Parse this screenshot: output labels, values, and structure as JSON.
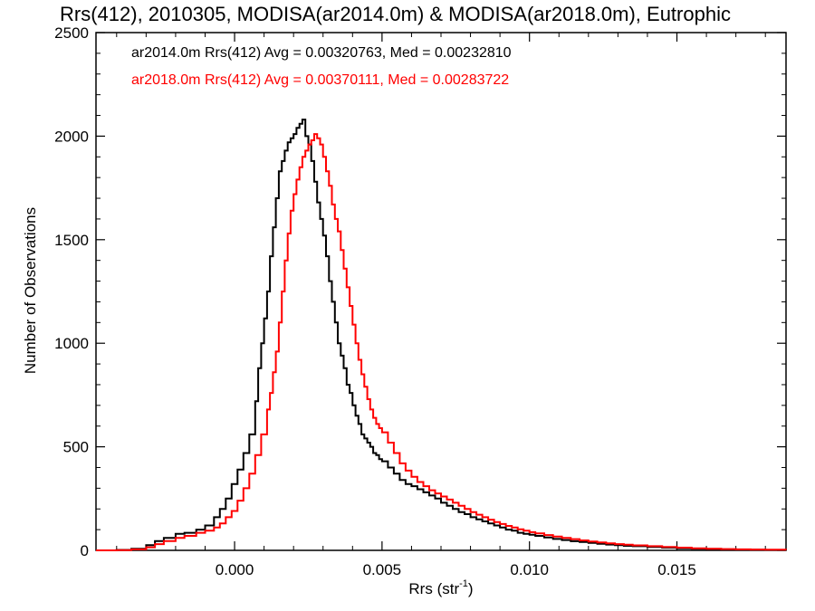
{
  "chart_data": {
    "type": "line",
    "title": "Rrs(412), 2010305, MODISA(ar2014.0m) & MODISA(ar2018.0m), Eutrophic",
    "xlabel": "Rrs (str",
    "xlabel_sup": "-1",
    "xlabel_end": ")",
    "ylabel": "Number of Observations",
    "xlim": [
      -0.0047,
      0.0187
    ],
    "ylim": [
      0,
      2500
    ],
    "x_ticks": [
      0.0,
      0.005,
      0.01,
      0.015
    ],
    "x_tick_labels": [
      "0.000",
      "0.005",
      "0.010",
      "0.015"
    ],
    "y_ticks": [
      0,
      500,
      1000,
      1500,
      2000,
      2500
    ],
    "y_tick_labels": [
      "0",
      "500",
      "1000",
      "1500",
      "2000",
      "2500"
    ],
    "legend_placement": "top-left",
    "grid": false,
    "series": [
      {
        "name": "ar2014.0m",
        "color": "#000000",
        "legend": "ar2014.0m Rrs(412) Avg = 0.00320763, Med = 0.00232810",
        "points": [
          [
            -0.0047,
            0
          ],
          [
            -0.004,
            2
          ],
          [
            -0.0035,
            8
          ],
          [
            -0.003,
            25
          ],
          [
            -0.0027,
            45
          ],
          [
            -0.0024,
            60
          ],
          [
            -0.002,
            80
          ],
          [
            -0.0017,
            85
          ],
          [
            -0.0013,
            100
          ],
          [
            -0.001,
            120
          ],
          [
            -0.0007,
            160
          ],
          [
            -0.0005,
            200
          ],
          [
            -0.0003,
            250
          ],
          [
            -0.0001,
            320
          ],
          [
            0.0001,
            390
          ],
          [
            0.0003,
            470
          ],
          [
            0.0005,
            560
          ],
          [
            0.0007,
            720
          ],
          [
            0.0008,
            880
          ],
          [
            0.0009,
            1000
          ],
          [
            0.001,
            1120
          ],
          [
            0.0011,
            1250
          ],
          [
            0.0012,
            1420
          ],
          [
            0.0013,
            1560
          ],
          [
            0.0014,
            1700
          ],
          [
            0.0015,
            1830
          ],
          [
            0.0016,
            1880
          ],
          [
            0.0017,
            1930
          ],
          [
            0.0018,
            1970
          ],
          [
            0.0019,
            1990
          ],
          [
            0.002,
            2010
          ],
          [
            0.0021,
            2040
          ],
          [
            0.0022,
            2060
          ],
          [
            0.0023,
            2080
          ],
          [
            0.0024,
            2000
          ],
          [
            0.0025,
            1960
          ],
          [
            0.0026,
            1880
          ],
          [
            0.0027,
            1780
          ],
          [
            0.0028,
            1680
          ],
          [
            0.0029,
            1600
          ],
          [
            0.003,
            1520
          ],
          [
            0.0031,
            1420
          ],
          [
            0.0032,
            1300
          ],
          [
            0.0033,
            1200
          ],
          [
            0.0034,
            1100
          ],
          [
            0.0035,
            1000
          ],
          [
            0.0036,
            940
          ],
          [
            0.0037,
            880
          ],
          [
            0.0038,
            800
          ],
          [
            0.0039,
            760
          ],
          [
            0.004,
            700
          ],
          [
            0.0041,
            650
          ],
          [
            0.0042,
            610
          ],
          [
            0.0043,
            560
          ],
          [
            0.0044,
            540
          ],
          [
            0.0045,
            520
          ],
          [
            0.0046,
            500
          ],
          [
            0.0047,
            470
          ],
          [
            0.0048,
            460
          ],
          [
            0.0049,
            440
          ],
          [
            0.005,
            430
          ],
          [
            0.0052,
            400
          ],
          [
            0.0054,
            370
          ],
          [
            0.0056,
            340
          ],
          [
            0.0058,
            320
          ],
          [
            0.006,
            310
          ],
          [
            0.0062,
            295
          ],
          [
            0.0064,
            280
          ],
          [
            0.0066,
            265
          ],
          [
            0.0068,
            250
          ],
          [
            0.007,
            230
          ],
          [
            0.0072,
            215
          ],
          [
            0.0074,
            200
          ],
          [
            0.0076,
            185
          ],
          [
            0.0078,
            175
          ],
          [
            0.008,
            160
          ],
          [
            0.0082,
            150
          ],
          [
            0.0084,
            140
          ],
          [
            0.0086,
            130
          ],
          [
            0.0088,
            120
          ],
          [
            0.009,
            110
          ],
          [
            0.0092,
            100
          ],
          [
            0.0094,
            95
          ],
          [
            0.0096,
            85
          ],
          [
            0.0098,
            80
          ],
          [
            0.01,
            75
          ],
          [
            0.0102,
            70
          ],
          [
            0.0105,
            62
          ],
          [
            0.0108,
            55
          ],
          [
            0.0111,
            50
          ],
          [
            0.0114,
            44
          ],
          [
            0.0117,
            40
          ],
          [
            0.012,
            36
          ],
          [
            0.0123,
            32
          ],
          [
            0.0126,
            28
          ],
          [
            0.0129,
            25
          ],
          [
            0.0132,
            22
          ],
          [
            0.0135,
            20
          ],
          [
            0.014,
            16
          ],
          [
            0.0145,
            13
          ],
          [
            0.015,
            10
          ],
          [
            0.0155,
            8
          ],
          [
            0.016,
            7
          ],
          [
            0.0165,
            5
          ],
          [
            0.017,
            4
          ],
          [
            0.0175,
            3
          ],
          [
            0.018,
            2
          ],
          [
            0.0187,
            1
          ]
        ]
      },
      {
        "name": "ar2018.0m",
        "color": "#ff0000",
        "legend": "ar2018.0m Rrs(412) Avg = 0.00370111, Med = 0.00283722",
        "points": [
          [
            -0.0047,
            0
          ],
          [
            -0.004,
            1
          ],
          [
            -0.0035,
            5
          ],
          [
            -0.003,
            15
          ],
          [
            -0.0027,
            30
          ],
          [
            -0.0024,
            45
          ],
          [
            -0.002,
            60
          ],
          [
            -0.0017,
            70
          ],
          [
            -0.0013,
            85
          ],
          [
            -0.001,
            95
          ],
          [
            -0.0007,
            110
          ],
          [
            -0.0005,
            130
          ],
          [
            -0.0003,
            160
          ],
          [
            -0.0001,
            190
          ],
          [
            0.0001,
            240
          ],
          [
            0.0003,
            300
          ],
          [
            0.0005,
            370
          ],
          [
            0.0007,
            460
          ],
          [
            0.0009,
            560
          ],
          [
            0.0011,
            680
          ],
          [
            0.0012,
            760
          ],
          [
            0.0013,
            860
          ],
          [
            0.0014,
            960
          ],
          [
            0.0015,
            1100
          ],
          [
            0.0016,
            1250
          ],
          [
            0.0017,
            1400
          ],
          [
            0.0018,
            1530
          ],
          [
            0.0019,
            1640
          ],
          [
            0.002,
            1720
          ],
          [
            0.0021,
            1790
          ],
          [
            0.0022,
            1850
          ],
          [
            0.0023,
            1900
          ],
          [
            0.0024,
            1930
          ],
          [
            0.0025,
            1960
          ],
          [
            0.0026,
            1980
          ],
          [
            0.0027,
            2010
          ],
          [
            0.0028,
            1990
          ],
          [
            0.0029,
            1960
          ],
          [
            0.003,
            1900
          ],
          [
            0.0031,
            1830
          ],
          [
            0.0032,
            1760
          ],
          [
            0.0033,
            1670
          ],
          [
            0.0034,
            1600
          ],
          [
            0.0035,
            1540
          ],
          [
            0.0036,
            1450
          ],
          [
            0.0037,
            1360
          ],
          [
            0.0038,
            1270
          ],
          [
            0.0039,
            1180
          ],
          [
            0.004,
            1090
          ],
          [
            0.0041,
            1000
          ],
          [
            0.0042,
            920
          ],
          [
            0.0043,
            850
          ],
          [
            0.0044,
            790
          ],
          [
            0.0045,
            730
          ],
          [
            0.0046,
            680
          ],
          [
            0.0047,
            640
          ],
          [
            0.0048,
            610
          ],
          [
            0.0049,
            590
          ],
          [
            0.005,
            570
          ],
          [
            0.0052,
            520
          ],
          [
            0.0054,
            470
          ],
          [
            0.0056,
            420
          ],
          [
            0.0058,
            385
          ],
          [
            0.006,
            355
          ],
          [
            0.0062,
            330
          ],
          [
            0.0064,
            310
          ],
          [
            0.0066,
            290
          ],
          [
            0.0068,
            275
          ],
          [
            0.007,
            260
          ],
          [
            0.0072,
            245
          ],
          [
            0.0074,
            230
          ],
          [
            0.0076,
            215
          ],
          [
            0.0078,
            200
          ],
          [
            0.008,
            185
          ],
          [
            0.0082,
            172
          ],
          [
            0.0084,
            160
          ],
          [
            0.0086,
            148
          ],
          [
            0.0088,
            137
          ],
          [
            0.009,
            127
          ],
          [
            0.0092,
            118
          ],
          [
            0.0094,
            110
          ],
          [
            0.0096,
            102
          ],
          [
            0.0098,
            95
          ],
          [
            0.01,
            88
          ],
          [
            0.0102,
            82
          ],
          [
            0.0105,
            74
          ],
          [
            0.0108,
            67
          ],
          [
            0.0111,
            60
          ],
          [
            0.0114,
            54
          ],
          [
            0.0117,
            48
          ],
          [
            0.012,
            43
          ],
          [
            0.0123,
            38
          ],
          [
            0.0126,
            34
          ],
          [
            0.0129,
            30
          ],
          [
            0.0132,
            27
          ],
          [
            0.0135,
            24
          ],
          [
            0.014,
            20
          ],
          [
            0.0145,
            16
          ],
          [
            0.015,
            13
          ],
          [
            0.0155,
            10
          ],
          [
            0.016,
            8
          ],
          [
            0.0165,
            6
          ],
          [
            0.017,
            5
          ],
          [
            0.0175,
            4
          ],
          [
            0.018,
            3
          ],
          [
            0.0187,
            2
          ]
        ]
      }
    ]
  }
}
